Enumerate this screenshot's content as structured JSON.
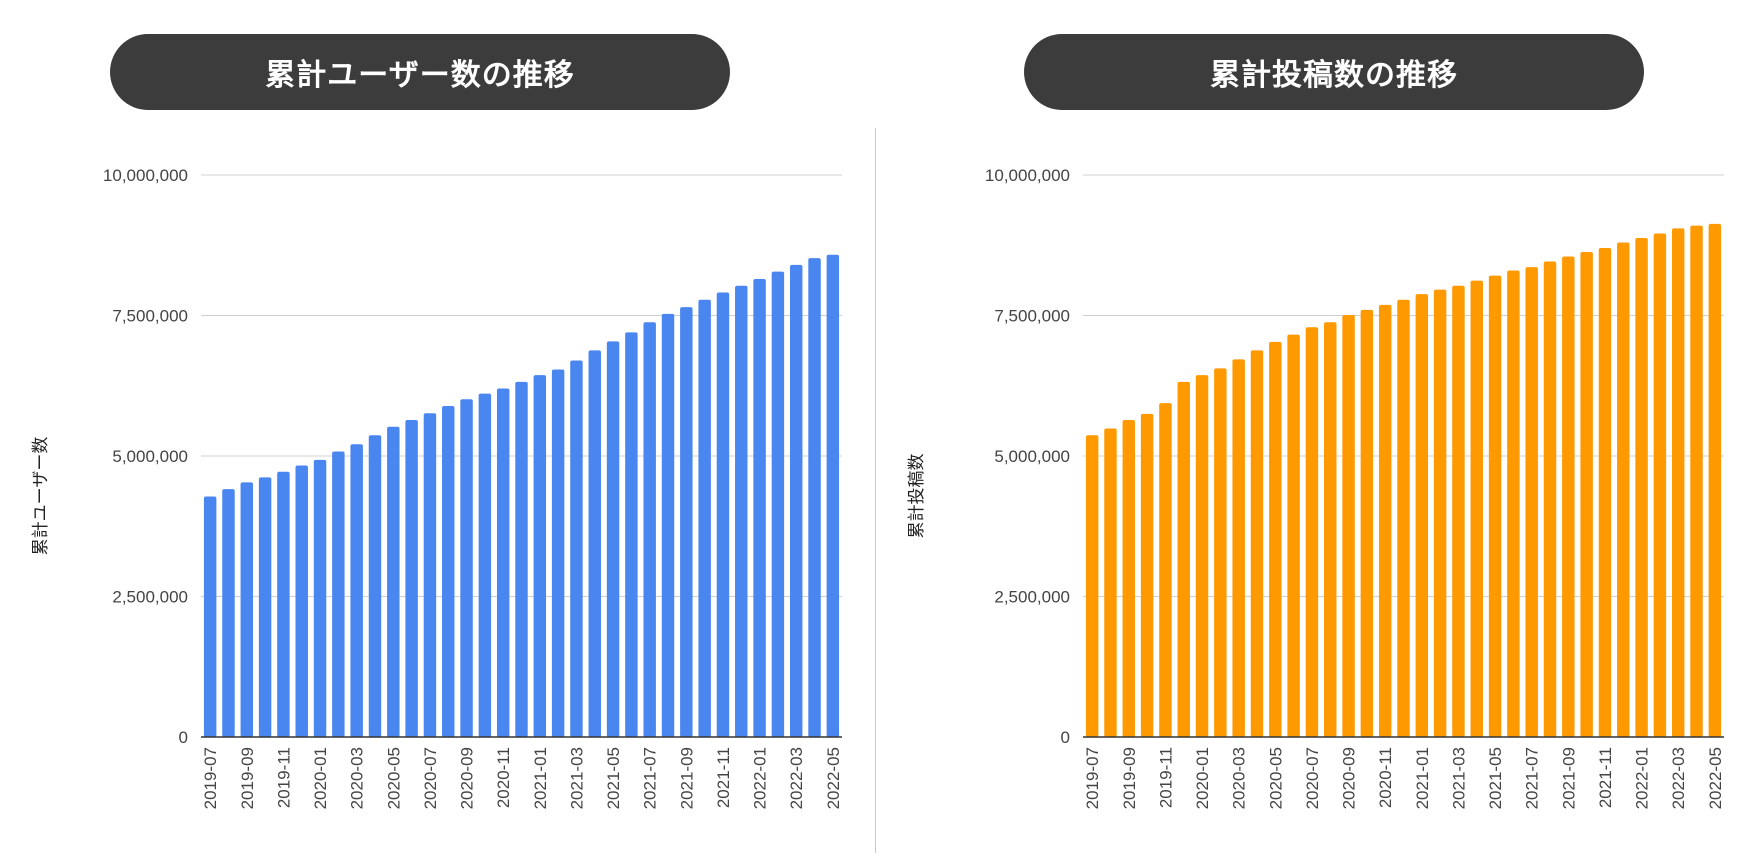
{
  "charts": {
    "users": {
      "title": "累計ユーザー数の推移",
      "color": "#4a86f0"
    },
    "posts": {
      "title": "累計投稿数の推移",
      "color": "#ff9900"
    }
  },
  "chart_data": [
    {
      "type": "bar",
      "title": "累計ユーザー数の推移",
      "ylabel": "累計ユーザー数",
      "xlabel": "",
      "ylim": [
        0,
        10000000
      ],
      "yticks": [
        "0",
        "2,500,000",
        "5,000,000",
        "7,500,000",
        "10,000,000"
      ],
      "ytick_values": [
        0,
        2500000,
        5000000,
        7500000,
        10000000
      ],
      "grid": true,
      "categories": [
        "2019-07",
        "2019-08",
        "2019-09",
        "2019-10",
        "2019-11",
        "2019-12",
        "2020-01",
        "2020-02",
        "2020-03",
        "2020-04",
        "2020-05",
        "2020-06",
        "2020-07",
        "2020-08",
        "2020-09",
        "2020-10",
        "2020-11",
        "2020-12",
        "2021-01",
        "2021-02",
        "2021-03",
        "2021-04",
        "2021-05",
        "2021-06",
        "2021-07",
        "2021-08",
        "2021-09",
        "2021-10",
        "2021-11",
        "2021-12",
        "2022-01",
        "2022-02",
        "2022-03",
        "2022-04",
        "2022-05"
      ],
      "xtick_labels": [
        "2019-07",
        "2019-09",
        "2019-11",
        "2020-01",
        "2020-03",
        "2020-05",
        "2020-07",
        "2020-09",
        "2020-11",
        "2021-01",
        "2021-03",
        "2021-05",
        "2021-07",
        "2021-09",
        "2021-11",
        "2022-01",
        "2022-03",
        "2022-05"
      ],
      "values": [
        4280000,
        4410000,
        4530000,
        4620000,
        4720000,
        4830000,
        4930000,
        5080000,
        5210000,
        5370000,
        5520000,
        5640000,
        5760000,
        5890000,
        6010000,
        6110000,
        6200000,
        6320000,
        6440000,
        6540000,
        6700000,
        6880000,
        7040000,
        7200000,
        7380000,
        7530000,
        7650000,
        7780000,
        7910000,
        8030000,
        8150000,
        8280000,
        8400000,
        8520000,
        8580000
      ],
      "color": "#4a86f0"
    },
    {
      "type": "bar",
      "title": "累計投稿数の推移",
      "ylabel": "累計投稿数",
      "xlabel": "",
      "ylim": [
        0,
        10000000
      ],
      "yticks": [
        "0",
        "2,500,000",
        "5,000,000",
        "7,500,000",
        "10,000,000"
      ],
      "ytick_values": [
        0,
        2500000,
        5000000,
        7500000,
        10000000
      ],
      "grid": true,
      "categories": [
        "2019-07",
        "2019-08",
        "2019-09",
        "2019-10",
        "2019-11",
        "2019-12",
        "2020-01",
        "2020-02",
        "2020-03",
        "2020-04",
        "2020-05",
        "2020-06",
        "2020-07",
        "2020-08",
        "2020-09",
        "2020-10",
        "2020-11",
        "2020-12",
        "2021-01",
        "2021-02",
        "2021-03",
        "2021-04",
        "2021-05",
        "2021-06",
        "2021-07",
        "2021-08",
        "2021-09",
        "2021-10",
        "2021-11",
        "2021-12",
        "2022-01",
        "2022-02",
        "2022-03",
        "2022-04",
        "2022-05"
      ],
      "xtick_labels": [
        "2019-07",
        "2019-09",
        "2019-11",
        "2020-01",
        "2020-03",
        "2020-05",
        "2020-07",
        "2020-09",
        "2020-11",
        "2021-01",
        "2021-03",
        "2021-05",
        "2021-07",
        "2021-09",
        "2021-11",
        "2022-01",
        "2022-03",
        "2022-05"
      ],
      "values": [
        5370000,
        5490000,
        5640000,
        5750000,
        5940000,
        6320000,
        6440000,
        6560000,
        6720000,
        6880000,
        7030000,
        7160000,
        7290000,
        7380000,
        7510000,
        7600000,
        7690000,
        7780000,
        7880000,
        7960000,
        8030000,
        8120000,
        8210000,
        8300000,
        8360000,
        8460000,
        8550000,
        8630000,
        8700000,
        8800000,
        8880000,
        8960000,
        9050000,
        9100000,
        9130000
      ],
      "color": "#ff9900"
    }
  ]
}
